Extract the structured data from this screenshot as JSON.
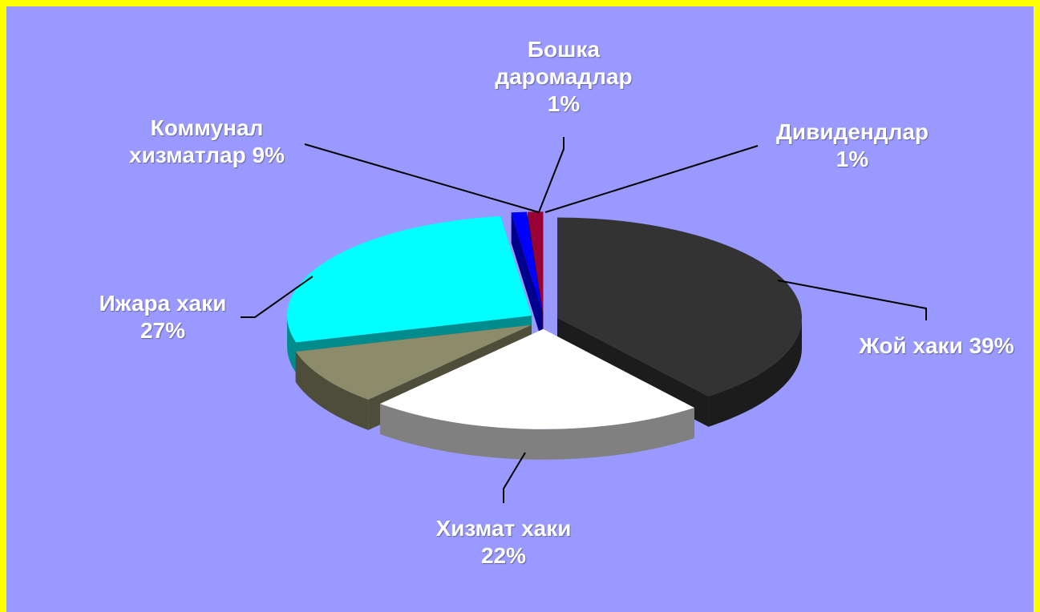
{
  "chart_data": {
    "type": "pie",
    "categories": [
      "Жой хаки",
      "Хизмат хаки",
      "Коммунал хизматлар",
      "Ижара хаки",
      "Бошка даромадлар",
      "Дивидендлар"
    ],
    "values": [
      39,
      22,
      9,
      27,
      1,
      1
    ],
    "value_labels": [
      "39%",
      "22%",
      "9%",
      "27%",
      "1%",
      "1%"
    ],
    "colors": [
      "#333333",
      "#ffffff",
      "#8c8c6a",
      "#00ffff",
      "#0000ff",
      "#990033"
    ]
  }
}
